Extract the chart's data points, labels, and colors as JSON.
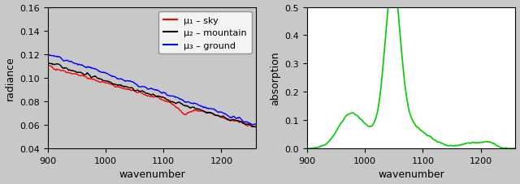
{
  "left_xlim": [
    900,
    1260
  ],
  "left_ylim": [
    0.04,
    0.16
  ],
  "left_xlabel": "wavenumber",
  "left_ylabel": "radiance",
  "left_yticks": [
    0.04,
    0.06,
    0.08,
    0.1,
    0.12,
    0.14,
    0.16
  ],
  "left_xticks": [
    900,
    1000,
    1100,
    1200
  ],
  "right_xlim": [
    900,
    1260
  ],
  "right_ylim": [
    0.0,
    0.5
  ],
  "right_xlabel": "wavenumber",
  "right_ylabel": "absorption",
  "right_yticks": [
    0.0,
    0.1,
    0.2,
    0.3,
    0.4,
    0.5
  ],
  "right_xticks": [
    900,
    1000,
    1100,
    1200
  ],
  "color_sky": "#ff0000",
  "color_mountain": "#000000",
  "color_ground": "#0000ff",
  "color_absorption": "#00cc00",
  "legend_labels": [
    "μ₁ – sky",
    "μ₂ – mountain",
    "μ₃ – ground"
  ],
  "background_color": "#c8c8c8",
  "fig_facecolor": "#c8c8c8"
}
